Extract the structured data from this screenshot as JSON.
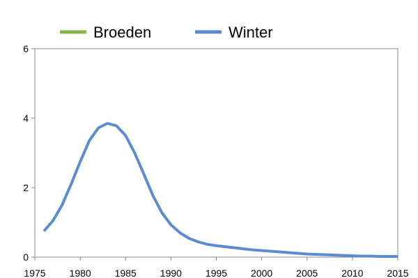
{
  "chart_data": {
    "type": "line",
    "legend": {
      "placement": "top",
      "entries": [
        {
          "name": "Broeden",
          "color": "#8ab34a"
        },
        {
          "name": "Winter",
          "color": "#5b8bd0"
        }
      ]
    },
    "xlim": [
      1975,
      2015
    ],
    "ylim": [
      0,
      6
    ],
    "x_ticks": [
      "1975",
      "1980",
      "1985",
      "1990",
      "1995",
      "2000",
      "2005",
      "2010",
      "2015"
    ],
    "y_ticks": [
      "0",
      "2",
      "4",
      "6"
    ],
    "grid": false,
    "series": [
      {
        "name": "Broeden",
        "color": "#8ab34a",
        "x": [],
        "y": []
      },
      {
        "name": "Winter",
        "color": "#5b8bd0",
        "x": [
          1976,
          1977,
          1978,
          1979,
          1980,
          1981,
          1982,
          1983,
          1984,
          1985,
          1986,
          1987,
          1988,
          1989,
          1990,
          1991,
          1992,
          1993,
          1994,
          1995,
          1996,
          1997,
          1998,
          1999,
          2000,
          2001,
          2002,
          2003,
          2004,
          2005,
          2006,
          2007,
          2008,
          2009,
          2010,
          2011,
          2012,
          2013,
          2014,
          2015
        ],
        "y": [
          0.75,
          1.05,
          1.5,
          2.1,
          2.75,
          3.35,
          3.72,
          3.85,
          3.78,
          3.5,
          3.0,
          2.4,
          1.78,
          1.28,
          0.93,
          0.7,
          0.54,
          0.44,
          0.37,
          0.33,
          0.3,
          0.27,
          0.24,
          0.21,
          0.19,
          0.17,
          0.15,
          0.13,
          0.11,
          0.09,
          0.08,
          0.07,
          0.06,
          0.05,
          0.04,
          0.03,
          0.03,
          0.02,
          0.02,
          0.02
        ]
      }
    ]
  }
}
